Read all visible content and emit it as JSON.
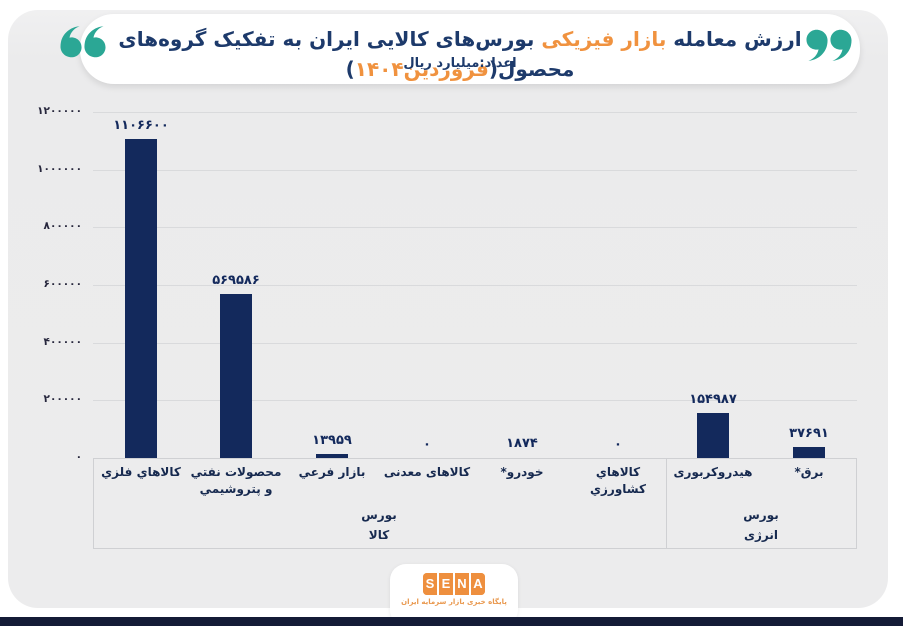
{
  "header": {
    "title_segments": [
      {
        "text": "ارزش معامله ",
        "orange": false
      },
      {
        "text": "بازار فیزیکی",
        "orange": true
      },
      {
        "text": " بورس‌های کالایی ایران به تفکیک گروه‌های محصول",
        "orange": false
      },
      {
        "text": "(",
        "orange": false
      },
      {
        "text": "فروردین۱۴۰۴",
        "orange": true
      },
      {
        "text": ")",
        "orange": false
      }
    ],
    "subtitle": "اعداد:میلیارد ریال",
    "title_color": "#1d3a6b",
    "accent_color": "#f0923f",
    "quote_color": "#2ba795"
  },
  "chart_data": {
    "type": "bar",
    "title": "ارزش معامله بازار فیزیکی بورس‌های کالایی ایران به تفکیک گروه‌های محصول (فروردین۱۴۰۴)",
    "unit_label": "اعداد:میلیارد ریال",
    "categories": [
      "کالاهاي فلزي",
      "محصولات نفتي و پتروشيمي",
      "بازار فرعي",
      "کالاهای معدنی",
      "خودرو*",
      "کالاهاي کشاورزي",
      "هیدروکربوری",
      "برق*"
    ],
    "category_lines": [
      [
        "کالاهاي فلزي"
      ],
      [
        "محصولات نفتي",
        "و پتروشيمي"
      ],
      [
        "بازار فرعي"
      ],
      [
        "کالاهای معدنی"
      ],
      [
        "خودرو*"
      ],
      [
        "کالاهاي کشاورزي"
      ],
      [
        "هیدروکربوری"
      ],
      [
        "برق*"
      ]
    ],
    "values": [
      1106600,
      569586,
      13959,
      0,
      1874,
      0,
      154987,
      37691
    ],
    "value_labels": [
      "۱۱۰۶۶۰۰",
      "۵۶۹۵۸۶",
      "۱۳۹۵۹",
      "۰",
      "۱۸۷۴",
      "۰",
      "۱۵۴۹۸۷",
      "۳۷۶۹۱"
    ],
    "groups": [
      {
        "lines": [
          "بورس",
          "کالا"
        ],
        "from": 0,
        "to": 5
      },
      {
        "lines": [
          "بورس",
          "انرژی"
        ],
        "from": 6,
        "to": 7
      }
    ],
    "yticks": [
      {
        "value": 0,
        "label": "۰"
      },
      {
        "value": 200000,
        "label": "۲۰۰۰۰۰"
      },
      {
        "value": 400000,
        "label": "۴۰۰۰۰۰"
      },
      {
        "value": 600000,
        "label": "۶۰۰۰۰۰"
      },
      {
        "value": 800000,
        "label": "۸۰۰۰۰۰"
      },
      {
        "value": 1000000,
        "label": "۱۰۰۰۰۰۰"
      },
      {
        "value": 1200000,
        "label": "۱۲۰۰۰۰۰"
      }
    ],
    "ylim": [
      0,
      1200000
    ],
    "grid": true,
    "legend": false,
    "bar_color": "#13295c"
  },
  "footer": {
    "logo_letters": [
      "S",
      "E",
      "N",
      "A"
    ],
    "logo_color": "#ee8f3e",
    "tagline": "پایگاه خبری بازار سرمایه ایران"
  }
}
